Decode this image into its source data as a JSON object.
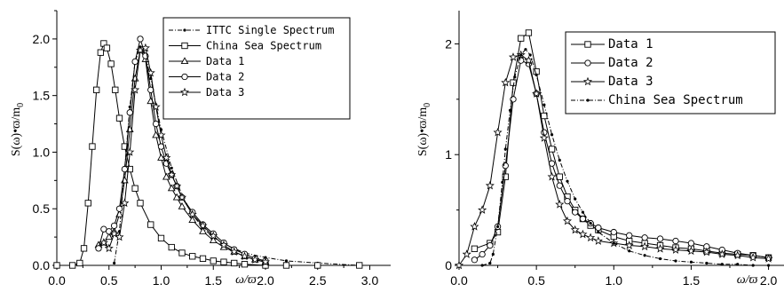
{
  "chart_data": [
    {
      "type": "line",
      "xlabel": "ω/ϖ",
      "ylabel": "S(ω)•ϖ/m",
      "ylabel_sub": "0",
      "xlim": [
        0.0,
        3.2
      ],
      "ylim": [
        0.0,
        2.25
      ],
      "xticks": [
        0.0,
        0.5,
        1.0,
        1.5,
        2.0,
        2.5,
        3.0
      ],
      "xtick_labels": [
        "0.0",
        "0.5",
        "1.0",
        "1.5",
        "2.0",
        "2.5",
        "3.0"
      ],
      "yticks": [
        0.0,
        0.5,
        1.0,
        1.5,
        2.0
      ],
      "ytick_labels": [
        "0.0",
        "0.5",
        "1.0",
        "1.5",
        "2.0"
      ],
      "legend": "top-right",
      "series": [
        {
          "name": "ITTC Single Spectrum",
          "marker": "dot",
          "dash": "dashdot",
          "x": [
            0.55,
            0.6,
            0.65,
            0.7,
            0.75,
            0.8,
            0.85,
            0.9,
            0.95,
            1.0,
            1.1,
            1.2,
            1.3,
            1.4,
            1.5,
            1.6,
            1.8,
            2.0,
            2.2,
            2.5,
            2.9
          ],
          "y": [
            0.02,
            0.3,
            0.85,
            1.4,
            1.8,
            1.93,
            1.85,
            1.65,
            1.42,
            1.2,
            0.86,
            0.62,
            0.45,
            0.33,
            0.25,
            0.19,
            0.11,
            0.07,
            0.04,
            0.02,
            0.0
          ]
        },
        {
          "name": "China Sea Spectrum",
          "marker": "square",
          "x": [
            0.0,
            0.15,
            0.22,
            0.26,
            0.3,
            0.34,
            0.38,
            0.42,
            0.45,
            0.48,
            0.52,
            0.56,
            0.6,
            0.65,
            0.7,
            0.75,
            0.8,
            0.9,
            1.0,
            1.1,
            1.2,
            1.3,
            1.4,
            1.5,
            1.6,
            1.7,
            1.8,
            2.0,
            2.2,
            2.5,
            2.9
          ],
          "y": [
            0.0,
            0.0,
            0.02,
            0.15,
            0.55,
            1.05,
            1.55,
            1.88,
            1.96,
            1.92,
            1.78,
            1.55,
            1.3,
            1.05,
            0.85,
            0.68,
            0.55,
            0.36,
            0.24,
            0.16,
            0.11,
            0.08,
            0.06,
            0.04,
            0.03,
            0.02,
            0.01,
            0.0,
            0.0,
            0.0,
            0.0
          ]
        },
        {
          "name": "Data 1",
          "marker": "triangle",
          "x": [
            0.4,
            0.45,
            0.5,
            0.55,
            0.6,
            0.65,
            0.7,
            0.75,
            0.8,
            0.85,
            0.9,
            0.95,
            1.0,
            1.05,
            1.1,
            1.15,
            1.2,
            1.3,
            1.4,
            1.5,
            1.6,
            1.7,
            1.8,
            1.9,
            2.0
          ],
          "y": [
            0.18,
            0.2,
            0.25,
            0.3,
            0.45,
            0.75,
            1.2,
            1.65,
            1.9,
            1.82,
            1.45,
            1.15,
            0.95,
            0.78,
            0.68,
            0.6,
            0.52,
            0.4,
            0.3,
            0.22,
            0.16,
            0.12,
            0.08,
            0.05,
            0.03
          ]
        },
        {
          "name": "Data 2",
          "marker": "circle",
          "x": [
            0.4,
            0.45,
            0.5,
            0.55,
            0.6,
            0.65,
            0.7,
            0.75,
            0.8,
            0.85,
            0.9,
            0.95,
            1.0,
            1.05,
            1.1,
            1.15,
            1.2,
            1.3,
            1.4,
            1.5,
            1.6,
            1.7,
            1.8,
            1.9,
            2.0
          ],
          "y": [
            0.15,
            0.32,
            0.3,
            0.35,
            0.5,
            0.85,
            1.35,
            1.8,
            2.0,
            1.85,
            1.55,
            1.25,
            1.05,
            0.9,
            0.8,
            0.7,
            0.6,
            0.47,
            0.36,
            0.28,
            0.2,
            0.14,
            0.1,
            0.06,
            0.04
          ]
        },
        {
          "name": "Data 3",
          "marker": "star",
          "x": [
            0.45,
            0.5,
            0.55,
            0.6,
            0.65,
            0.7,
            0.75,
            0.8,
            0.85,
            0.9,
            0.95,
            1.0,
            1.05,
            1.1,
            1.15,
            1.2,
            1.3,
            1.4,
            1.5,
            1.6,
            1.7,
            1.8,
            1.9,
            2.0
          ],
          "y": [
            0.2,
            0.15,
            0.28,
            0.25,
            0.55,
            1.0,
            1.55,
            1.9,
            1.92,
            1.7,
            1.4,
            1.15,
            0.95,
            0.8,
            0.7,
            0.6,
            0.45,
            0.35,
            0.26,
            0.18,
            0.12,
            0.08,
            0.05,
            0.03
          ]
        }
      ]
    },
    {
      "type": "line",
      "xlabel": "ω/ϖ",
      "ylabel": "S(ω)•ϖ/m",
      "ylabel_sub": "0",
      "xlim": [
        0.0,
        2.1
      ],
      "ylim": [
        0.0,
        2.3
      ],
      "xticks": [
        0.0,
        0.5,
        1.0,
        1.5,
        2.0
      ],
      "xtick_labels": [
        "0.0",
        "0.5",
        "1.0",
        "1.5",
        "2.0"
      ],
      "yticks": [
        0,
        1,
        2
      ],
      "ytick_labels": [
        "0",
        "1",
        "2"
      ],
      "legend": "top-right",
      "series": [
        {
          "name": "Data 1",
          "marker": "square",
          "x": [
            0.1,
            0.2,
            0.25,
            0.3,
            0.35,
            0.4,
            0.45,
            0.5,
            0.55,
            0.6,
            0.65,
            0.7,
            0.75,
            0.8,
            0.85,
            0.9,
            1.0,
            1.1,
            1.2,
            1.3,
            1.4,
            1.5,
            1.6,
            1.7,
            1.8,
            1.9,
            2.0
          ],
          "y": [
            0.15,
            0.2,
            0.3,
            0.8,
            1.65,
            2.05,
            2.1,
            1.75,
            1.35,
            1.05,
            0.8,
            0.62,
            0.5,
            0.42,
            0.36,
            0.32,
            0.26,
            0.22,
            0.2,
            0.18,
            0.16,
            0.15,
            0.13,
            0.11,
            0.1,
            0.09,
            0.07
          ]
        },
        {
          "name": "Data 2",
          "marker": "circle",
          "x": [
            0.1,
            0.15,
            0.2,
            0.25,
            0.3,
            0.35,
            0.4,
            0.45,
            0.5,
            0.55,
            0.6,
            0.65,
            0.7,
            0.75,
            0.8,
            0.85,
            0.9,
            1.0,
            1.1,
            1.2,
            1.3,
            1.4,
            1.5,
            1.6,
            1.7,
            1.8,
            1.9,
            2.0
          ],
          "y": [
            0.05,
            0.1,
            0.18,
            0.35,
            0.9,
            1.5,
            1.85,
            1.82,
            1.55,
            1.2,
            0.92,
            0.72,
            0.58,
            0.48,
            0.42,
            0.38,
            0.34,
            0.3,
            0.27,
            0.25,
            0.24,
            0.22,
            0.2,
            0.17,
            0.14,
            0.11,
            0.09,
            0.07
          ]
        },
        {
          "name": "Data 3",
          "marker": "star",
          "x": [
            0.0,
            0.05,
            0.1,
            0.15,
            0.2,
            0.25,
            0.3,
            0.35,
            0.4,
            0.45,
            0.5,
            0.55,
            0.6,
            0.65,
            0.7,
            0.75,
            0.8,
            0.85,
            0.9,
            1.0,
            1.1,
            1.2,
            1.3,
            1.4,
            1.5,
            1.6,
            1.7,
            1.8,
            1.9,
            2.0
          ],
          "y": [
            0.0,
            0.1,
            0.35,
            0.5,
            0.72,
            1.2,
            1.65,
            1.88,
            1.9,
            1.85,
            1.55,
            1.15,
            0.8,
            0.55,
            0.4,
            0.32,
            0.28,
            0.25,
            0.22,
            0.2,
            0.18,
            0.17,
            0.15,
            0.14,
            0.13,
            0.12,
            0.1,
            0.09,
            0.07,
            0.06
          ]
        },
        {
          "name": "China Sea Spectrum",
          "marker": "dot",
          "dash": "dashdot",
          "x": [
            0.15,
            0.2,
            0.22,
            0.25,
            0.28,
            0.3,
            0.33,
            0.36,
            0.4,
            0.43,
            0.46,
            0.5,
            0.55,
            0.6,
            0.65,
            0.7,
            0.75,
            0.8,
            0.85,
            0.9,
            1.0,
            1.1,
            1.2,
            1.3,
            1.4,
            1.5,
            1.6,
            1.7,
            1.8,
            1.9,
            2.0
          ],
          "y": [
            0.0,
            0.02,
            0.1,
            0.35,
            0.75,
            1.05,
            1.4,
            1.7,
            1.9,
            1.95,
            1.9,
            1.72,
            1.45,
            1.18,
            0.95,
            0.76,
            0.6,
            0.48,
            0.38,
            0.3,
            0.2,
            0.13,
            0.09,
            0.06,
            0.04,
            0.03,
            0.02,
            0.01,
            0.01,
            0.0,
            0.0
          ]
        }
      ]
    }
  ]
}
